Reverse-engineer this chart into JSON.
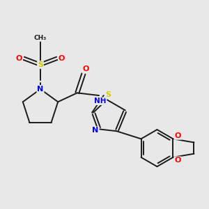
{
  "background_color": "#e8e8e8",
  "bond_color": "#1a1a1a",
  "atom_colors": {
    "S": "#cccc00",
    "N": "#0000ff",
    "O": "#ff0000",
    "C": "#1a1a1a",
    "H": "#1a1a1a"
  },
  "figsize": [
    3.0,
    3.0
  ],
  "dpi": 100
}
